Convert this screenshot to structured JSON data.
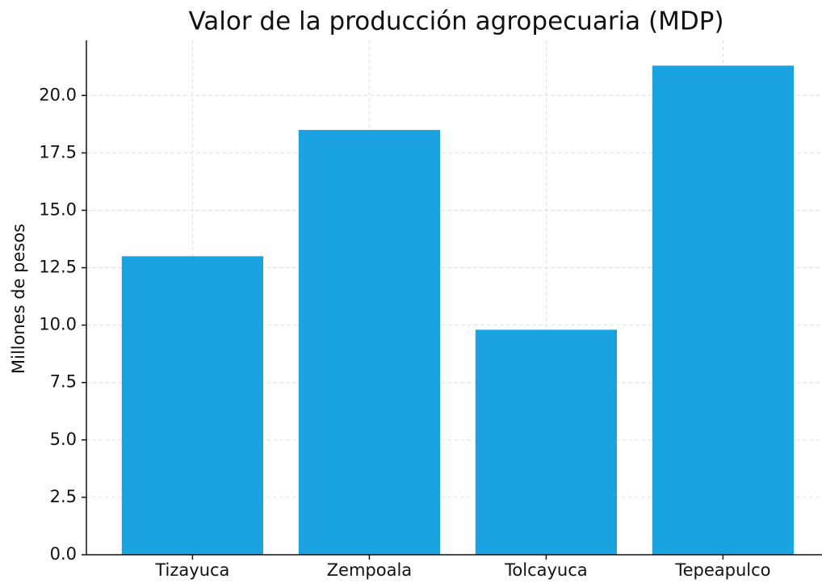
{
  "chart_data": {
    "type": "bar",
    "title": "Valor de la producción agropecuaria (MDP)",
    "ylabel": "Millones de pesos",
    "categories": [
      "Tizayuca",
      "Zempoala",
      "Tolcayuca",
      "Tepeapulco"
    ],
    "values": [
      13.0,
      18.5,
      9.8,
      21.3
    ],
    "color": "#1aa3e0",
    "ylim": [
      0,
      22.4
    ],
    "yticks": [
      {
        "value": 0,
        "label": "0.0"
      },
      2.5,
      {
        "value": 5,
        "label": "5.0"
      },
      7.5,
      {
        "value": 10,
        "label": "10.0"
      },
      12.5,
      {
        "value": 15,
        "label": "15.0"
      },
      17.5,
      {
        "value": 20,
        "label": "20.0"
      }
    ],
    "grid": true
  }
}
